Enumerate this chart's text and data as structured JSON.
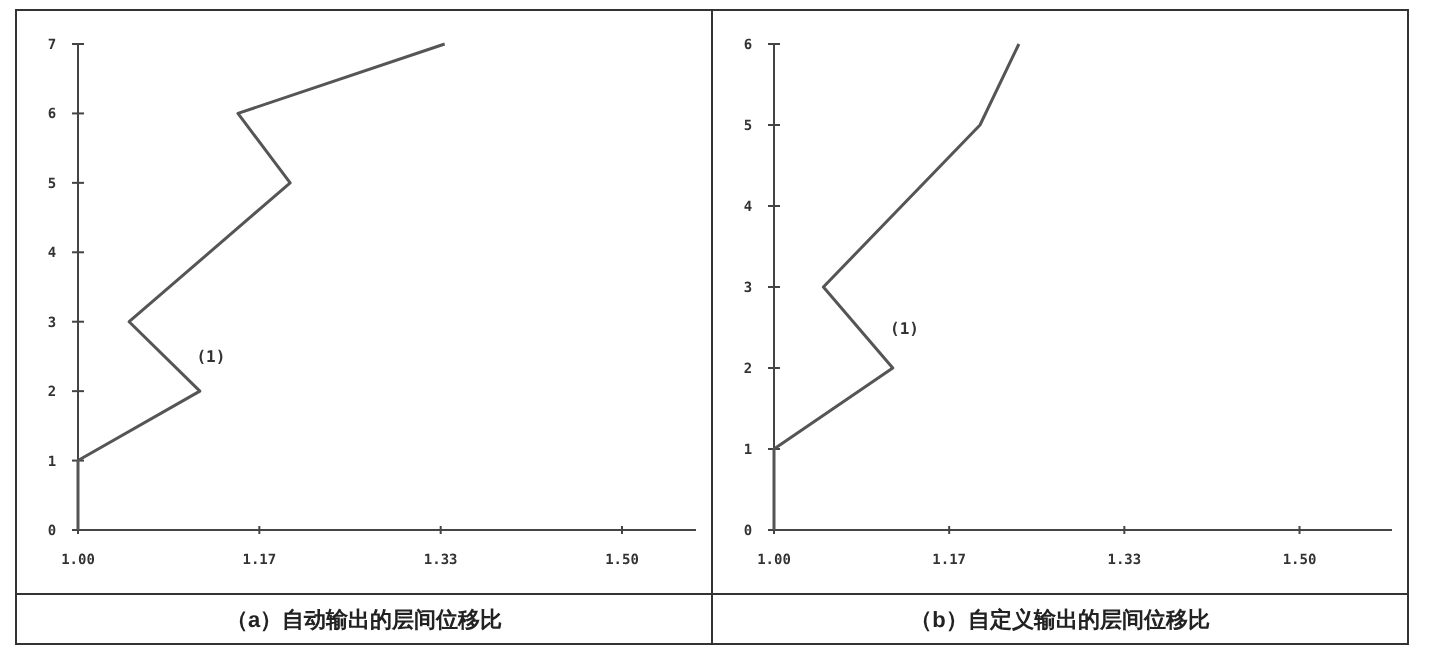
{
  "chart_data": [
    {
      "type": "line",
      "title": "（a）自动输出的层间位移比",
      "xlim": [
        1,
        1.568
      ],
      "xticks": [
        {
          "value": 1,
          "label": "1.00"
        },
        {
          "value": 1.16667,
          "label": "1.17"
        },
        {
          "value": 1.33333,
          "label": "1.33"
        },
        {
          "value": 1.5,
          "label": "1.50"
        }
      ],
      "ylim": [
        0,
        7
      ],
      "yticks": [
        0,
        1,
        2,
        3,
        4,
        5,
        6,
        7
      ],
      "series": [
        {
          "color": "#555555",
          "x": [
            1.0,
            1.0,
            1.112,
            1.047,
            1.195,
            1.147,
            1.337
          ],
          "values": [
            0,
            1,
            2,
            3,
            5,
            6,
            7
          ]
        }
      ],
      "annotations": [
        "(1)"
      ]
    },
    {
      "type": "line",
      "title": "（b）自定义输出的层间位移比",
      "xlim": [
        1,
        1.588
      ],
      "xticks": [
        {
          "value": 1,
          "label": "1.00"
        },
        {
          "value": 1.16667,
          "label": "1.17"
        },
        {
          "value": 1.33333,
          "label": "1.33"
        },
        {
          "value": 1.5,
          "label": "1.50"
        }
      ],
      "ylim": [
        0,
        6
      ],
      "yticks": [
        0,
        1,
        2,
        3,
        4,
        5,
        6
      ],
      "series": [
        {
          "color": "#555555",
          "x": [
            1.0,
            1.0,
            1.113,
            1.047,
            1.196,
            1.233
          ],
          "values": [
            0,
            1,
            2,
            3,
            5,
            6
          ]
        }
      ],
      "annotations": [
        "(1)"
      ]
    }
  ]
}
